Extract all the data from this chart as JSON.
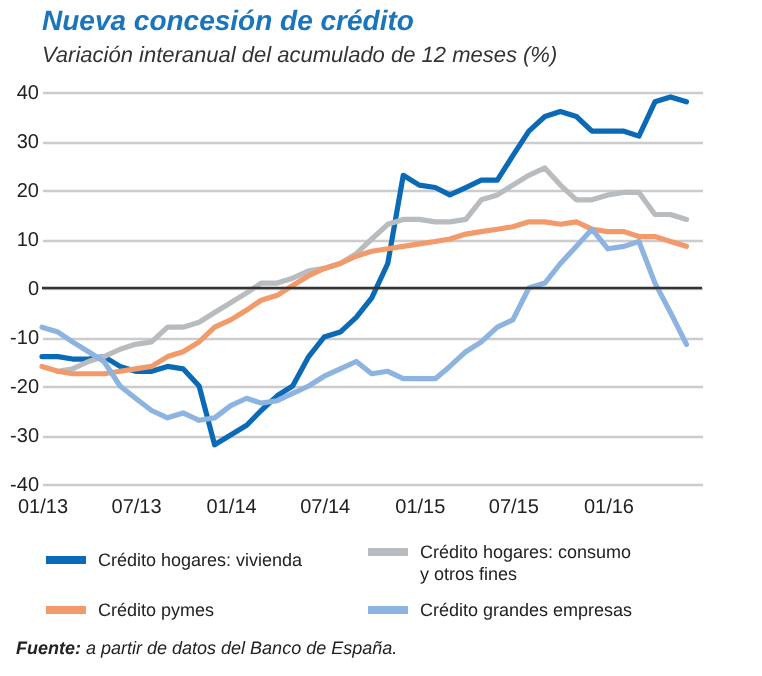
{
  "chart_data": {
    "type": "line",
    "title": "Nueva concesión de crédito",
    "subtitle": "Variación interanual del acumulado de 12 meses (%)",
    "x": [
      "2013-01",
      "2013-02",
      "2013-03",
      "2013-04",
      "2013-05",
      "2013-06",
      "2013-07",
      "2013-08",
      "2013-09",
      "2013-10",
      "2013-11",
      "2013-12",
      "2014-01",
      "2014-02",
      "2014-03",
      "2014-04",
      "2014-05",
      "2014-06",
      "2014-07",
      "2014-08",
      "2014-09",
      "2014-10",
      "2014-11",
      "2014-12",
      "2015-01",
      "2015-02",
      "2015-03",
      "2015-04",
      "2015-05",
      "2015-06",
      "2015-07",
      "2015-08",
      "2015-09",
      "2015-10",
      "2015-11",
      "2015-12",
      "2016-01",
      "2016-02",
      "2016-03",
      "2016-04",
      "2016-05",
      "2016-06"
    ],
    "series": [
      {
        "name": "Crédito hogares: vivienda",
        "color": "#0a6ab6",
        "values": [
          -14,
          -14,
          -14.5,
          -14.5,
          -14,
          -16,
          -17,
          -17,
          -16,
          -16.5,
          -20,
          -32,
          -30,
          -28,
          -25,
          -22,
          -20,
          -14,
          -10,
          -9,
          -6,
          -2,
          5,
          23,
          21,
          20.5,
          19,
          20.5,
          22,
          22,
          27,
          32,
          35,
          36,
          35,
          32,
          32,
          32,
          31,
          38,
          39,
          38
        ]
      },
      {
        "name": "Crédito hogares: consumo y otros fines",
        "color": "#b8bcbe",
        "values": [
          null,
          -17,
          -16.5,
          -15,
          -14,
          -12.5,
          -11.5,
          -11,
          -8,
          -8,
          -7,
          -5,
          -3,
          -1,
          1,
          1,
          2,
          3.5,
          4,
          5,
          7,
          10,
          13,
          14,
          14,
          13.5,
          13.5,
          14,
          18,
          19,
          21,
          23,
          24.5,
          21,
          18,
          18,
          19,
          19.5,
          19.5,
          15,
          15,
          14
        ]
      },
      {
        "name": "Crédito pymes",
        "color": "#f39a6b",
        "values": [
          -16,
          -17,
          -17.5,
          -17.5,
          -17.5,
          -17,
          -16.5,
          -16,
          -14,
          -13,
          -11,
          -8,
          -6.5,
          -4.5,
          -2.5,
          -1.5,
          0.5,
          2.5,
          4,
          5,
          6.5,
          7.5,
          8,
          8.5,
          9,
          9.5,
          10,
          11,
          11.5,
          12,
          12.5,
          13.5,
          13.5,
          13,
          13.5,
          12,
          11.5,
          11.5,
          10.5,
          10.5,
          9.5,
          8.5
        ]
      },
      {
        "name": "Crédito grandes empresas",
        "color": "#8db3e0",
        "values": [
          -8,
          -9,
          -11,
          -13,
          -15,
          -20,
          -22.5,
          -25,
          -26.5,
          -25.5,
          -27,
          -26.5,
          -24,
          -22.5,
          -23.5,
          -23,
          -21.5,
          -20,
          -18,
          -16.5,
          -15,
          -17.5,
          -17,
          -18.5,
          -18.5,
          -18.5,
          -16,
          -13,
          -11,
          -8,
          -6.5,
          0,
          1,
          5,
          8.5,
          12,
          8,
          8.5,
          9.5,
          1,
          -5,
          -11.5
        ]
      }
    ],
    "xlim": [
      "2013-01",
      "2016-07"
    ],
    "xticks": [
      {
        "value": "2013-01",
        "label": "01/13"
      },
      {
        "value": "2013-07",
        "label": "07/13"
      },
      {
        "value": "2014-01",
        "label": "01/14"
      },
      {
        "value": "2014-07",
        "label": "07/14"
      },
      {
        "value": "2015-01",
        "label": "01/15"
      },
      {
        "value": "2015-07",
        "label": "07/15"
      },
      {
        "value": "2016-01",
        "label": "01/16"
      }
    ],
    "ylim": [
      -40,
      40
    ],
    "yticks": [
      -40,
      -30,
      -20,
      -10,
      0,
      10,
      20,
      30,
      40
    ],
    "ref_lines": [
      {
        "axis": "y",
        "value": 0,
        "color": "#333333"
      }
    ],
    "grid": "y",
    "legend": "bottom",
    "marker": "none",
    "line_style": "solid",
    "annotations": [
      "Fuente: a partir de datos del Banco de España."
    ]
  }
}
